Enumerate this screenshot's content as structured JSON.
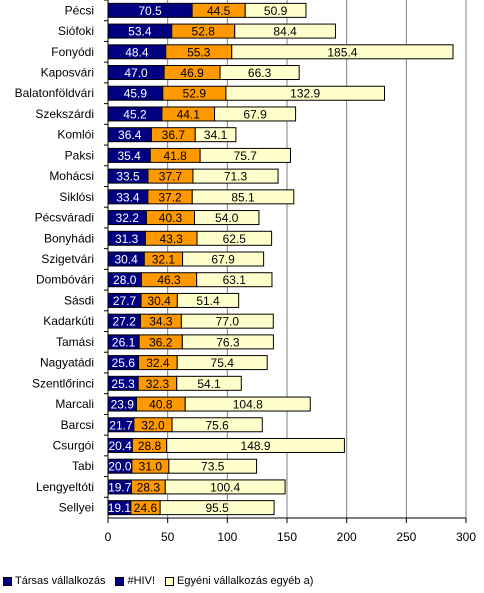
{
  "chart_data": {
    "type": "bar",
    "orientation": "horizontal",
    "stacked": true,
    "categories": [
      "Pécsi",
      "Siófoki",
      "Fonyódi",
      "Kaposvári",
      "Balatonföldvári",
      "Szekszárdi",
      "Komlói",
      "Paksi",
      "Mohácsi",
      "Siklósi",
      "Pécsváradi",
      "Bonyhádi",
      "Szigetvári",
      "Dombóvári",
      "Sásdi",
      "Kadarkúti",
      "Tamási",
      "Nagyatádi",
      "Szentlőrinci",
      "Marcali",
      "Barcsi",
      "Csurgói",
      "Tabi",
      "Lengyeltóti",
      "Sellyei"
    ],
    "series": [
      {
        "name": "Társas vállalkozás",
        "color": "#000080",
        "label_color": "#ffffff",
        "values": [
          70.5,
          53.4,
          48.4,
          47.0,
          45.9,
          45.2,
          36.4,
          35.4,
          33.5,
          33.4,
          32.2,
          31.3,
          30.4,
          28.0,
          27.7,
          27.2,
          26.1,
          25.6,
          25.3,
          23.9,
          21.7,
          20.4,
          20.0,
          19.7,
          19.1
        ]
      },
      {
        "name": "#HIV!",
        "color": "#ff9900",
        "label_color": "#000000",
        "values": [
          44.5,
          52.8,
          55.3,
          46.9,
          52.9,
          44.1,
          36.7,
          41.8,
          37.7,
          37.2,
          40.3,
          43.3,
          32.1,
          46.3,
          30.4,
          34.3,
          36.2,
          32.4,
          32.3,
          40.8,
          32.0,
          28.8,
          31.0,
          28.3,
          24.6
        ]
      },
      {
        "name": "Egyéni vállalkozás egyéb a)",
        "color": "#ffffcc",
        "label_color": "#000000",
        "values": [
          50.9,
          84.4,
          185.4,
          66.3,
          132.9,
          67.9,
          34.1,
          75.7,
          71.3,
          85.1,
          54.0,
          62.5,
          67.9,
          63.1,
          51.4,
          77.0,
          76.3,
          75.4,
          54.1,
          104.8,
          75.6,
          148.9,
          73.5,
          100.4,
          95.5
        ]
      }
    ],
    "xlim": [
      0,
      300
    ],
    "xticks": [
      "0",
      "50",
      "100",
      "150",
      "200",
      "250",
      "300"
    ],
    "grid": true,
    "legend_position": "bottom",
    "title": "",
    "xlabel": "",
    "ylabel": ""
  }
}
